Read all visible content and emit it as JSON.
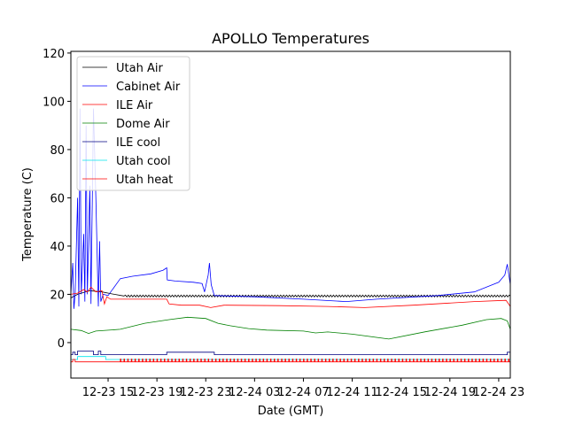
{
  "chart_data": {
    "type": "line",
    "title": "APOLLO Temperatures",
    "xlabel": "Date (GMT)",
    "ylabel": "Temperature (C)",
    "x_units": "hours since 12-23 00:00 GMT",
    "xlim": [
      11.95,
      47.95
    ],
    "ylim": [
      -14.7,
      120.7
    ],
    "yticks": [
      0,
      20,
      40,
      60,
      80,
      100,
      120
    ],
    "xticks": [
      {
        "x": 15,
        "label": "12-23 15"
      },
      {
        "x": 19,
        "label": "12-23 19"
      },
      {
        "x": 23,
        "label": "12-23 23"
      },
      {
        "x": 27,
        "label": "12-24 03"
      },
      {
        "x": 31,
        "label": "12-24 07"
      },
      {
        "x": 35,
        "label": "12-24 11"
      },
      {
        "x": 39,
        "label": "12-24 15"
      },
      {
        "x": 43,
        "label": "12-24 19"
      },
      {
        "x": 47,
        "label": "12-24 23"
      }
    ],
    "grid": false,
    "legend_position": "top-left",
    "series": [
      {
        "name": "Utah Air",
        "color": "#000000",
        "oscillation": 0.4,
        "points": [
          [
            11.95,
            18.5
          ],
          [
            12.5,
            20
          ],
          [
            13.5,
            21.5
          ],
          [
            14.5,
            21
          ],
          [
            15.5,
            20
          ],
          [
            16.3,
            19.3
          ],
          [
            47.95,
            19.3
          ]
        ]
      },
      {
        "name": "Cabinet Air",
        "color": "#0000ff",
        "points": [
          [
            11.95,
            20
          ],
          [
            12.1,
            33
          ],
          [
            12.2,
            14
          ],
          [
            12.3,
            20
          ],
          [
            12.5,
            60
          ],
          [
            12.6,
            15
          ],
          [
            12.7,
            97
          ],
          [
            12.8,
            20
          ],
          [
            13.0,
            45
          ],
          [
            13.1,
            17
          ],
          [
            13.2,
            90
          ],
          [
            13.3,
            20
          ],
          [
            13.5,
            65
          ],
          [
            13.6,
            16
          ],
          [
            13.8,
            97
          ],
          [
            14.0,
            60
          ],
          [
            14.2,
            15
          ],
          [
            14.3,
            42
          ],
          [
            14.4,
            17
          ],
          [
            14.6,
            20
          ],
          [
            15.0,
            19.5
          ],
          [
            16.0,
            26.5
          ],
          [
            17.0,
            27.5
          ],
          [
            18.5,
            28.5
          ],
          [
            19.5,
            30
          ],
          [
            19.8,
            31
          ],
          [
            19.85,
            26
          ],
          [
            20.5,
            25.5
          ],
          [
            22.0,
            25
          ],
          [
            22.7,
            24.5
          ],
          [
            22.9,
            21
          ],
          [
            23.2,
            28
          ],
          [
            23.3,
            33
          ],
          [
            23.45,
            24
          ],
          [
            23.7,
            19.5
          ],
          [
            27,
            19
          ],
          [
            31,
            18
          ],
          [
            34.5,
            17
          ],
          [
            37,
            18
          ],
          [
            42,
            19.5
          ],
          [
            45,
            21
          ],
          [
            46.5,
            24
          ],
          [
            47.0,
            25
          ],
          [
            47.5,
            28
          ],
          [
            47.7,
            32.5
          ],
          [
            47.95,
            24
          ]
        ]
      },
      {
        "name": "ILE Air",
        "color": "#ff0000",
        "points": [
          [
            11.95,
            20
          ],
          [
            12.5,
            20.5
          ],
          [
            13.0,
            22
          ],
          [
            13.3,
            21
          ],
          [
            13.6,
            23
          ],
          [
            14.0,
            21
          ],
          [
            14.5,
            21.5
          ],
          [
            14.7,
            16
          ],
          [
            14.9,
            19
          ],
          [
            15.2,
            18
          ],
          [
            19.8,
            18
          ],
          [
            20.0,
            16
          ],
          [
            21.0,
            15.5
          ],
          [
            22.5,
            15.5
          ],
          [
            23.4,
            14.5
          ],
          [
            24.5,
            15.5
          ],
          [
            29,
            15.3
          ],
          [
            33,
            15
          ],
          [
            36,
            14.5
          ],
          [
            40,
            15.5
          ],
          [
            45,
            17
          ],
          [
            47.6,
            17.5
          ],
          [
            47.95,
            15
          ]
        ]
      },
      {
        "name": "Dome Air",
        "color": "#008000",
        "points": [
          [
            11.95,
            5.5
          ],
          [
            12.8,
            5
          ],
          [
            13.4,
            3.8
          ],
          [
            14,
            4.8
          ],
          [
            16,
            5.5
          ],
          [
            18,
            8
          ],
          [
            20,
            9.5
          ],
          [
            21.5,
            10.5
          ],
          [
            23,
            10
          ],
          [
            24,
            8
          ],
          [
            25,
            7
          ],
          [
            26.5,
            5.8
          ],
          [
            28,
            5.2
          ],
          [
            31,
            4.8
          ],
          [
            32,
            4
          ],
          [
            33,
            4.4
          ],
          [
            35,
            3.5
          ],
          [
            38,
            1.5
          ],
          [
            41,
            4.5
          ],
          [
            44,
            7.2
          ],
          [
            46,
            9.5
          ],
          [
            47.2,
            10
          ],
          [
            47.7,
            9
          ],
          [
            47.95,
            5.5
          ]
        ]
      },
      {
        "name": "ILE cool",
        "color": "#000080",
        "points": [
          [
            11.95,
            -5
          ],
          [
            12.1,
            -5
          ],
          [
            12.1,
            -4
          ],
          [
            12.3,
            -4
          ],
          [
            12.3,
            -5
          ],
          [
            12.5,
            -5
          ],
          [
            12.5,
            -3.5
          ],
          [
            13.8,
            -3.5
          ],
          [
            13.8,
            -5
          ],
          [
            14.2,
            -5
          ],
          [
            14.2,
            -3.5
          ],
          [
            14.4,
            -3.5
          ],
          [
            14.4,
            -5
          ],
          [
            19.8,
            -5
          ],
          [
            19.8,
            -4
          ],
          [
            23.7,
            -4
          ],
          [
            23.7,
            -5
          ],
          [
            47.7,
            -5
          ],
          [
            47.7,
            -4
          ],
          [
            47.95,
            -4
          ]
        ]
      },
      {
        "name": "Utah cool",
        "color": "#00e5ee",
        "points": [
          [
            11.95,
            -7
          ],
          [
            12.5,
            -7
          ],
          [
            12.5,
            -5.8
          ],
          [
            14.8,
            -5.8
          ],
          [
            14.8,
            -7
          ],
          [
            47.95,
            -7
          ]
        ]
      },
      {
        "name": "Utah heat",
        "color": "#ff0000",
        "pulse_period": 0.3,
        "pulse_value": -6.8,
        "pulse_start": 16.0,
        "points": [
          [
            11.95,
            -8
          ],
          [
            12.1,
            -8
          ],
          [
            12.1,
            -7
          ],
          [
            12.3,
            -7
          ],
          [
            12.3,
            -8
          ],
          [
            47.95,
            -8
          ]
        ]
      }
    ]
  }
}
